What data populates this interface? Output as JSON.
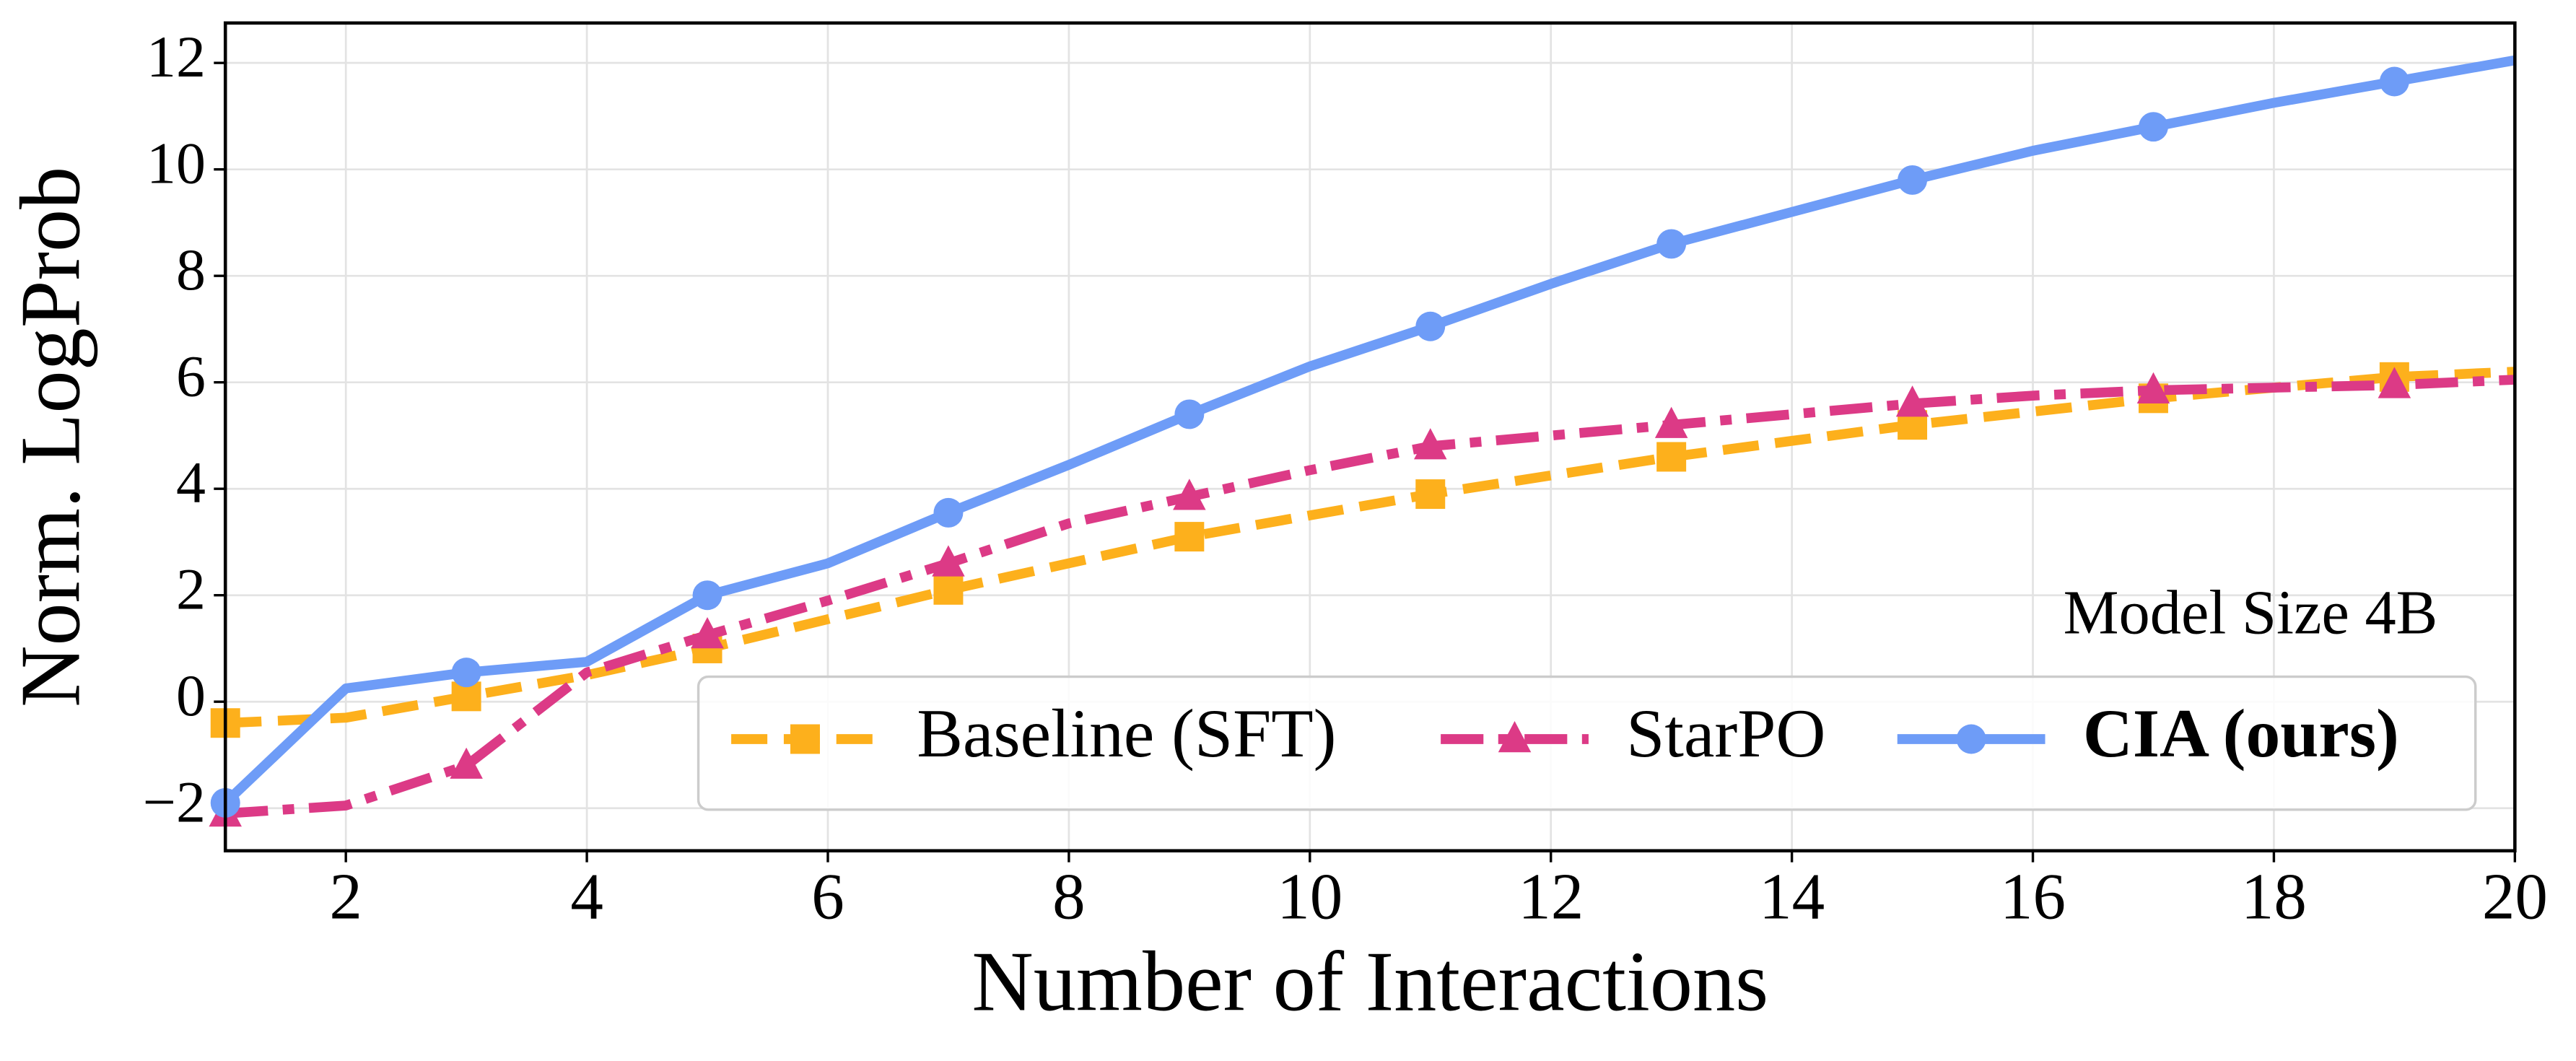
{
  "chart_data": {
    "type": "line",
    "xlabel": "Number of Interactions",
    "ylabel": "Norm. LogProb",
    "annotation": "Model Size 4B",
    "x": [
      1,
      2,
      3,
      4,
      5,
      6,
      7,
      8,
      9,
      10,
      11,
      12,
      13,
      14,
      15,
      16,
      17,
      18,
      19,
      20
    ],
    "xlim": [
      1,
      20
    ],
    "ylim": [
      -2.8,
      12.75
    ],
    "xticks": [
      2,
      4,
      6,
      8,
      10,
      12,
      14,
      16,
      18,
      20
    ],
    "yticks": [
      {
        "value": -2,
        "label": "−2"
      },
      0,
      2,
      4,
      6,
      8,
      10,
      12
    ],
    "grid": true,
    "legend": "lower right",
    "markevery": 2,
    "series": [
      {
        "name": "Baseline (SFT)",
        "color": "#fdb01c",
        "dash": "dashed",
        "marker": "square",
        "bold": false,
        "values": [
          -0.4,
          -0.3,
          0.1,
          0.5,
          1.0,
          1.55,
          2.1,
          2.6,
          3.1,
          3.5,
          3.9,
          4.25,
          4.6,
          4.9,
          5.2,
          5.45,
          5.7,
          5.9,
          6.1,
          6.2
        ]
      },
      {
        "name": "StarPO",
        "color": "#dc3a86",
        "dash": "dashdot",
        "marker": "triangle",
        "bold": false,
        "values": [
          -2.1,
          -1.95,
          -1.2,
          0.55,
          1.25,
          1.9,
          2.6,
          3.35,
          3.85,
          4.35,
          4.8,
          5.0,
          5.2,
          5.4,
          5.6,
          5.75,
          5.85,
          5.9,
          5.95,
          6.05
        ]
      },
      {
        "name": "CIA (ours)",
        "color": "#6e9cf7",
        "dash": "solid",
        "marker": "circle",
        "bold": true,
        "values": [
          -1.9,
          0.25,
          0.55,
          0.75,
          2.0,
          2.6,
          3.55,
          4.45,
          5.4,
          6.3,
          7.05,
          7.85,
          8.6,
          9.2,
          9.8,
          10.35,
          10.8,
          11.25,
          11.65,
          12.05
        ]
      }
    ]
  }
}
